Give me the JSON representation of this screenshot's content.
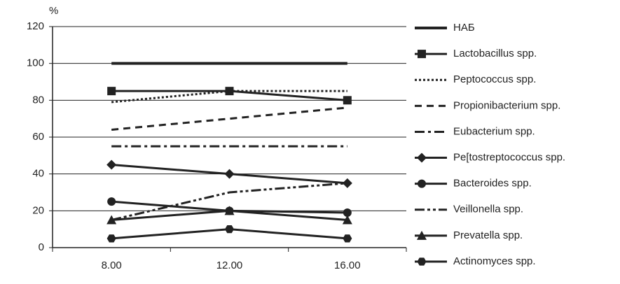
{
  "chart_data": {
    "type": "line",
    "y_label": "%",
    "categories": [
      "8.00",
      "12.00",
      "16.00"
    ],
    "ylim": [
      0,
      120
    ],
    "yticks": [
      0,
      20,
      40,
      60,
      80,
      100,
      120
    ],
    "grid": true,
    "legend": "right",
    "series": [
      {
        "name": "НАБ",
        "color": "#222222",
        "dash": "solid",
        "width": 4,
        "marker": "none",
        "values": [
          100,
          100,
          100
        ]
      },
      {
        "name": "Lactobacillus spp.",
        "color": "#222222",
        "dash": "solid",
        "width": 3,
        "marker": "square",
        "values": [
          85,
          85,
          80
        ]
      },
      {
        "name": "Peptococcus spp.",
        "color": "#222222",
        "dash": "dot",
        "width": 3,
        "marker": "none",
        "values": [
          79,
          85,
          85
        ]
      },
      {
        "name": "Propionibacterium spp.",
        "color": "#222222",
        "dash": "dash",
        "width": 3,
        "marker": "none",
        "values": [
          64,
          70,
          76
        ]
      },
      {
        "name": "Eubacterium spp.",
        "color": "#222222",
        "dash": "dashdot",
        "width": 3,
        "marker": "none",
        "values": [
          55,
          55,
          55
        ]
      },
      {
        "name": "Pe[tostreptococcus spp.",
        "color": "#222222",
        "dash": "solid",
        "width": 3,
        "marker": "diamond",
        "values": [
          45,
          40,
          35
        ]
      },
      {
        "name": "Bacteroides spp.",
        "color": "#222222",
        "dash": "solid",
        "width": 3,
        "marker": "circle",
        "values": [
          25,
          20,
          19
        ]
      },
      {
        "name": "Veillonella spp.",
        "color": "#222222",
        "dash": "dashdotdot",
        "width": 3,
        "marker": "none",
        "values": [
          15,
          30,
          35
        ]
      },
      {
        "name": "Prevatella spp.",
        "color": "#222222",
        "dash": "solid",
        "width": 3,
        "marker": "triangle",
        "values": [
          15,
          20,
          15
        ]
      },
      {
        "name": "Actinomyces spp.",
        "color": "#222222",
        "dash": "solid",
        "width": 3,
        "marker": "hexagon",
        "values": [
          5,
          10,
          5
        ]
      }
    ]
  }
}
